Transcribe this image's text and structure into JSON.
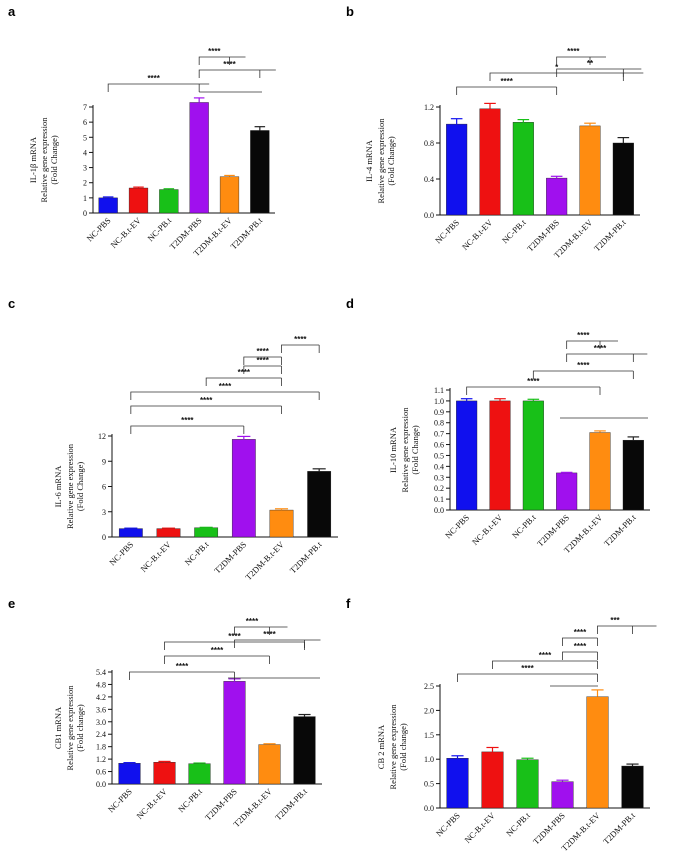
{
  "categories": [
    "NC-PBS",
    "NC-B.t-EV",
    "NC-PB.t",
    "T2DM-PBS",
    "T2DM-B.t-EV",
    "T2DM-PB.t"
  ],
  "colors": [
    "#1010ee",
    "#ee1111",
    "#18c018",
    "#a010ee",
    "#ff8c10",
    "#080808"
  ],
  "chart_data": [
    {
      "type": "bar",
      "panel": "a",
      "ylabel": [
        "IL-1β mRNA",
        "Relative gene expression",
        "(Fold Change)"
      ],
      "ylim": [
        0,
        7
      ],
      "yticks": [
        "0",
        "1",
        "2",
        "3",
        "4",
        "5",
        "6",
        "7"
      ],
      "values": [
        1.0,
        1.65,
        1.55,
        7.3,
        2.4,
        5.45
      ],
      "errors": [
        0.06,
        0.06,
        0.05,
        0.3,
        0.08,
        0.25
      ],
      "significance": [
        {
          "label": "****",
          "from": 3,
          "to": 4
        },
        {
          "label": "****",
          "from": 3,
          "to": 5
        },
        {
          "label": "****",
          "from": 0,
          "to": 3
        }
      ]
    },
    {
      "type": "bar",
      "panel": "b",
      "ylabel": [
        "IL-4 mRNA",
        "Relative gene expression",
        "(Fold Change)"
      ],
      "ylim": [
        0,
        1.2
      ],
      "yticks": [
        "0.0",
        "0.4",
        "0.8",
        "1.2"
      ],
      "values": [
        1.01,
        1.18,
        1.03,
        0.41,
        0.99,
        0.8
      ],
      "errors": [
        0.06,
        0.06,
        0.03,
        0.02,
        0.03,
        0.06
      ],
      "significance": [
        {
          "label": "****",
          "from": 3,
          "to": 4
        },
        {
          "label": "**",
          "from": 3,
          "to": 5
        },
        {
          "label": "*",
          "from": 1,
          "to": 5
        },
        {
          "label": "****",
          "from": 0,
          "to": 3
        }
      ]
    },
    {
      "type": "bar",
      "panel": "c",
      "ylabel": [
        "IL-6 mRNA",
        "Relative gene expression",
        "(Fold Change)"
      ],
      "ylim": [
        0,
        12
      ],
      "yticks": [
        "0",
        "3",
        "6",
        "9",
        "12"
      ],
      "values": [
        1.0,
        1.0,
        1.1,
        11.6,
        3.2,
        7.8
      ],
      "errors": [
        0.05,
        0.05,
        0.05,
        0.35,
        0.15,
        0.3
      ],
      "significance": [
        {
          "label": "****",
          "from": 4,
          "to": 5
        },
        {
          "label": "****",
          "from": 3,
          "to": 4
        },
        {
          "label": "****",
          "from": 3,
          "to": 4
        },
        {
          "label": "****",
          "from": 2,
          "to": 4
        },
        {
          "label": "****",
          "from": 0,
          "to": 5
        },
        {
          "label": "****",
          "from": 0,
          "to": 4
        },
        {
          "label": "****",
          "from": 0,
          "to": 3
        }
      ]
    },
    {
      "type": "bar",
      "panel": "d",
      "ylabel": [
        "IL-10 mRNA",
        "Relative gene expression",
        "(Fold Change)"
      ],
      "ylim": [
        0,
        1.1
      ],
      "yticks": [
        "0.0",
        "0.1",
        "0.2",
        "0.3",
        "0.4",
        "0.5",
        "0.6",
        "0.7",
        "0.8",
        "0.9",
        "1.0",
        "1.1"
      ],
      "values": [
        1.0,
        1.0,
        1.0,
        0.34,
        0.71,
        0.64
      ],
      "errors": [
        0.02,
        0.02,
        0.015,
        0.005,
        0.015,
        0.03
      ],
      "significance": [
        {
          "label": "****",
          "from": 3,
          "to": 4
        },
        {
          "label": "****",
          "from": 3,
          "to": 5
        },
        {
          "label": "****",
          "from": 2,
          "to": 5
        },
        {
          "label": "****",
          "from": 0,
          "to": 4
        }
      ]
    },
    {
      "type": "bar",
      "panel": "e",
      "ylabel": [
        "CB1 mRNA",
        "Relative gene expression",
        "(Fold change)"
      ],
      "ylim": [
        0,
        5.4
      ],
      "yticks": [
        "0.0",
        "0.6",
        "1.2",
        "1.8",
        "2.4",
        "3.0",
        "3.6",
        "4.2",
        "4.8",
        "5.4"
      ],
      "values": [
        1.0,
        1.05,
        0.98,
        4.95,
        1.9,
        3.25
      ],
      "errors": [
        0.03,
        0.04,
        0.03,
        0.12,
        0.04,
        0.1
      ],
      "significance": [
        {
          "label": "****",
          "from": 3,
          "to": 4
        },
        {
          "label": "****",
          "from": 3,
          "to": 5
        },
        {
          "label": "****",
          "from": 1,
          "to": 5
        },
        {
          "label": "****",
          "from": 1,
          "to": 4
        },
        {
          "label": "****",
          "from": 0,
          "to": 3
        }
      ]
    },
    {
      "type": "bar",
      "panel": "f",
      "ylabel": [
        "CB 2 mRNA",
        "Relative gene expression",
        "(Fold change)"
      ],
      "ylim": [
        0,
        2.5
      ],
      "yticks": [
        "0.0",
        "0.5",
        "1.0",
        "1.5",
        "2.0",
        "2.5"
      ],
      "values": [
        1.02,
        1.15,
        0.99,
        0.54,
        2.28,
        0.86
      ],
      "errors": [
        0.05,
        0.09,
        0.03,
        0.03,
        0.14,
        0.04
      ],
      "significance": [
        {
          "label": "***",
          "from": 4,
          "to": 5
        },
        {
          "label": "****",
          "from": 3,
          "to": 4
        },
        {
          "label": "****",
          "from": 3,
          "to": 4
        },
        {
          "label": "****",
          "from": 1,
          "to": 4
        },
        {
          "label": "****",
          "from": 0,
          "to": 4
        }
      ]
    }
  ]
}
